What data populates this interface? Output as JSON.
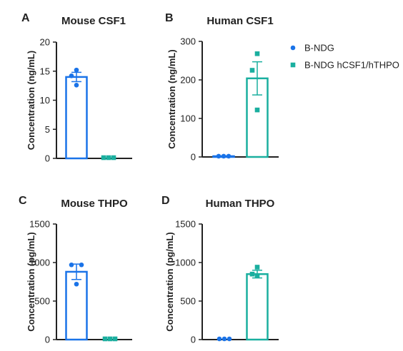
{
  "colors": {
    "bndg": "#1a73e8",
    "hum": "#1aaf9f",
    "axis": "#222222"
  },
  "legend": {
    "placement": "right",
    "items": [
      {
        "label": "B-NDG",
        "color": "#1a73e8",
        "marker": "circle"
      },
      {
        "label": "B-NDG hCSF1/hTHPO",
        "color": "#1aaf9f",
        "marker": "square"
      }
    ]
  },
  "chart_data": [
    {
      "panel": "A",
      "title": "Mouse CSF1",
      "type": "bar",
      "ylabel": "Concentration (ng/mL)",
      "ylim": [
        0,
        20
      ],
      "yticks": [
        0,
        5,
        10,
        15,
        20
      ],
      "categories": [
        "B-NDG",
        "B-NDG hCSF1/hTHPO"
      ],
      "values": [
        14.0,
        0.0
      ],
      "errors": [
        0.8,
        0.0
      ],
      "points": [
        [
          15.2,
          14.2,
          12.6
        ],
        [
          0,
          0,
          0
        ]
      ]
    },
    {
      "panel": "B",
      "title": "Human CSF1",
      "type": "bar",
      "ylabel": "Concentration (ng/mL)",
      "ylim": [
        0,
        300
      ],
      "yticks": [
        0,
        100,
        200,
        300
      ],
      "categories": [
        "B-NDG",
        "B-NDG hCSF1/hTHPO"
      ],
      "values": [
        2,
        204
      ],
      "errors": [
        0,
        43
      ],
      "points": [
        [
          2,
          2,
          2
        ],
        [
          268,
          225,
          122
        ]
      ]
    },
    {
      "panel": "C",
      "title": "Mouse THPO",
      "type": "bar",
      "ylabel": "Concentration (pg/mL)",
      "ylim": [
        0,
        1500
      ],
      "yticks": [
        0,
        500,
        1000,
        1500
      ],
      "categories": [
        "B-NDG",
        "B-NDG hCSF1/hTHPO"
      ],
      "values": [
        880,
        0
      ],
      "errors": [
        100,
        0
      ],
      "points": [
        [
          970,
          970,
          720
        ],
        [
          0,
          0,
          0
        ]
      ]
    },
    {
      "panel": "D",
      "title": "Human THPO",
      "type": "bar",
      "ylabel": "Concentration (pg/mL)",
      "ylim": [
        0,
        1500
      ],
      "yticks": [
        0,
        500,
        1000,
        1500
      ],
      "categories": [
        "B-NDG",
        "B-NDG hCSF1/hTHPO"
      ],
      "values": [
        0,
        850
      ],
      "errors": [
        0,
        50
      ],
      "points": [
        [
          0,
          0,
          0
        ],
        [
          940,
          850,
          830
        ]
      ]
    }
  ]
}
